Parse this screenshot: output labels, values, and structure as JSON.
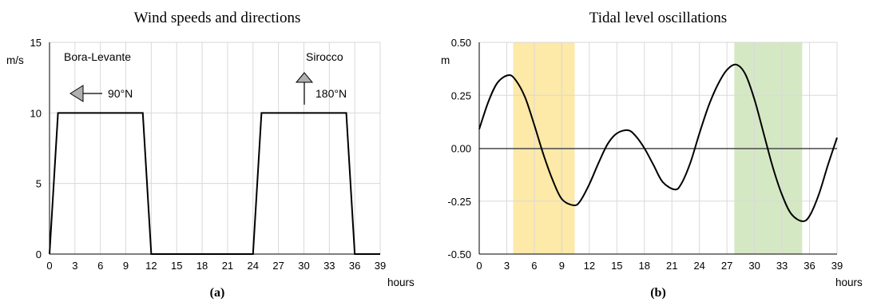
{
  "chart_data": [
    {
      "type": "line",
      "title": "Wind speeds and directions",
      "ylabel": "m/s",
      "xlabel": "hours",
      "panel_label": "(a)",
      "xlim": [
        0,
        39
      ],
      "ylim": [
        0,
        15
      ],
      "xticks": [
        "0",
        "3",
        "6",
        "9",
        "12",
        "15",
        "18",
        "21",
        "24",
        "27",
        "30",
        "33",
        "36",
        "39"
      ],
      "yticks": [
        "0",
        "5",
        "10",
        "15"
      ],
      "grid": true,
      "series": [
        {
          "x": [
            0,
            1,
            11,
            12,
            24,
            25,
            35,
            36,
            39
          ],
          "y": [
            0,
            10,
            10,
            0,
            0,
            10,
            10,
            0,
            0
          ]
        }
      ],
      "annotations": [
        {
          "text": "Bora-Levante",
          "direction": "90°N",
          "arrow": "left-pointing"
        },
        {
          "text": "Sirocco",
          "direction": "180°N",
          "arrow": "up-pointing"
        }
      ]
    },
    {
      "type": "line",
      "title": "Tidal level oscillations",
      "ylabel": "m",
      "xlabel": "hours",
      "panel_label": "(b)",
      "xlim": [
        0,
        39
      ],
      "ylim": [
        -0.5,
        0.5
      ],
      "xticks": [
        "0",
        "3",
        "6",
        "9",
        "12",
        "15",
        "18",
        "21",
        "24",
        "27",
        "30",
        "33",
        "36",
        "39"
      ],
      "yticks": [
        "-0.50",
        "-0.25",
        "0.00",
        "0.25",
        "0.50"
      ],
      "grid": true,
      "highlight_bands": [
        {
          "x": [
            3.7,
            10.4
          ],
          "color": "#fde9a8"
        },
        {
          "x": [
            27.8,
            35.2
          ],
          "color": "#d5e8c4"
        }
      ],
      "series": [
        {
          "x": [
            0,
            1,
            2,
            3.2,
            4,
            5,
            6,
            7,
            8,
            9,
            10.3,
            11,
            12,
            13,
            14,
            15,
            16.2,
            17,
            18,
            19,
            20,
            21.3,
            22,
            23,
            24,
            25,
            26,
            27,
            28,
            29,
            30,
            31,
            32,
            33,
            34,
            35.2,
            36,
            37,
            38,
            39
          ],
          "y": [
            0.09,
            0.22,
            0.31,
            0.345,
            0.32,
            0.24,
            0.11,
            -0.03,
            -0.15,
            -0.24,
            -0.27,
            -0.25,
            -0.17,
            -0.07,
            0.02,
            0.07,
            0.085,
            0.06,
            0.0,
            -0.08,
            -0.16,
            -0.195,
            -0.17,
            -0.07,
            0.07,
            0.2,
            0.3,
            0.37,
            0.395,
            0.35,
            0.23,
            0.07,
            -0.09,
            -0.22,
            -0.31,
            -0.345,
            -0.32,
            -0.22,
            -0.08,
            0.05
          ]
        }
      ]
    }
  ]
}
